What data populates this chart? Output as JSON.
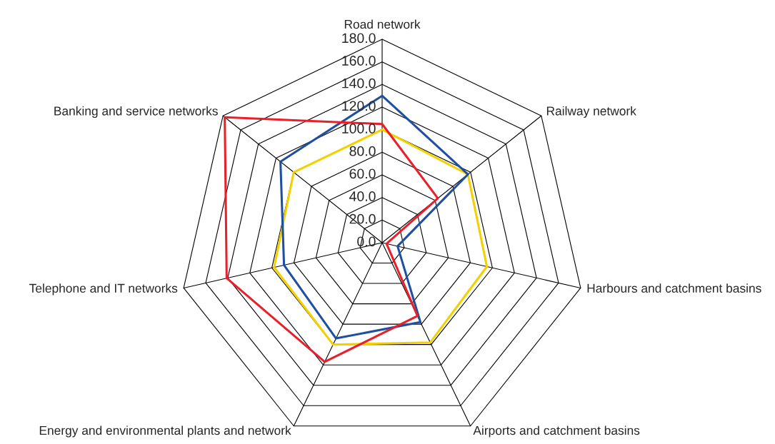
{
  "chart_data": {
    "type": "radar",
    "categories": [
      "Road network",
      "Railway network",
      "Harbours and catchment basins",
      "Airports and catchment basins",
      "Energy and environmental plants and network",
      "Telephone and IT networks",
      "Banking and service networks"
    ],
    "series": [
      {
        "color": "#f5d000",
        "values": [
          100,
          97,
          95,
          98,
          100,
          98,
          100
        ]
      },
      {
        "color": "#1f4fa0",
        "values": [
          130,
          97,
          14,
          78,
          94,
          89,
          115
        ]
      },
      {
        "color": "#e8202a",
        "values": [
          105,
          63,
          4,
          72,
          117,
          141,
          178
        ]
      }
    ],
    "ylim": [
      0,
      180
    ],
    "yticks": [
      {
        "value": 0,
        "label": "0.0"
      },
      {
        "value": 20,
        "label": "20.0"
      },
      {
        "value": 40,
        "label": "40.0"
      },
      {
        "value": 60,
        "label": "60.0"
      },
      {
        "value": 80,
        "label": "80.0"
      },
      {
        "value": 100,
        "label": "100.0"
      },
      {
        "value": 120,
        "label": "120.0"
      },
      {
        "value": 140,
        "label": "140.0"
      },
      {
        "value": 160,
        "label": "160.0"
      },
      {
        "value": 180,
        "label": "180.0"
      }
    ],
    "grid": true
  }
}
